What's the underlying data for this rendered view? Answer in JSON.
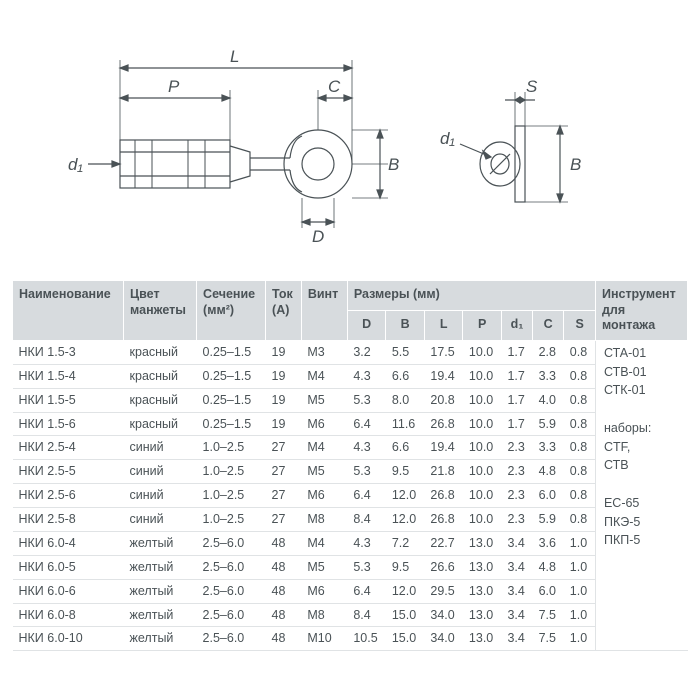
{
  "diagram": {
    "labels": {
      "L": "L",
      "P": "P",
      "C": "C",
      "B": "B",
      "D": "D",
      "S": "S",
      "d1": "d₁"
    },
    "stroke": "#4a5256",
    "stroke_width": 1.2
  },
  "table": {
    "headers": {
      "name": "Наименование",
      "color": "Цвет\nманжеты",
      "section": "Сечение\n(мм²)",
      "current": "Ток\n(A)",
      "screw": "Винт",
      "sizes": "Размеры (мм)",
      "D": "D",
      "Bc": "B",
      "Lc": "L",
      "Pc": "P",
      "d1c": "d₁",
      "Cc": "C",
      "Sc": "S",
      "tool": "Инструмент\nдля\nмонтажа"
    },
    "rows": [
      {
        "name": "НКИ 1.5-3",
        "color": "красный",
        "sec": "0.25–1.5",
        "cur": "19",
        "screw": "M3",
        "D": "3.2",
        "B": "5.5",
        "L": "17.5",
        "P": "10.0",
        "d1": "1.7",
        "C": "2.8",
        "S": "0.8"
      },
      {
        "name": "НКИ 1.5-4",
        "color": "красный",
        "sec": "0.25–1.5",
        "cur": "19",
        "screw": "M4",
        "D": "4.3",
        "B": "6.6",
        "L": "19.4",
        "P": "10.0",
        "d1": "1.7",
        "C": "3.3",
        "S": "0.8"
      },
      {
        "name": "НКИ 1.5-5",
        "color": "красный",
        "sec": "0.25–1.5",
        "cur": "19",
        "screw": "M5",
        "D": "5.3",
        "B": "8.0",
        "L": "20.8",
        "P": "10.0",
        "d1": "1.7",
        "C": "4.0",
        "S": "0.8"
      },
      {
        "name": "НКИ 1.5-6",
        "color": "красный",
        "sec": "0.25–1.5",
        "cur": "19",
        "screw": "M6",
        "D": "6.4",
        "B": "11.6",
        "L": "26.8",
        "P": "10.0",
        "d1": "1.7",
        "C": "5.9",
        "S": "0.8"
      },
      {
        "name": "НКИ 2.5-4",
        "color": "синий",
        "sec": "1.0–2.5",
        "cur": "27",
        "screw": "M4",
        "D": "4.3",
        "B": "6.6",
        "L": "19.4",
        "P": "10.0",
        "d1": "2.3",
        "C": "3.3",
        "S": "0.8"
      },
      {
        "name": "НКИ 2.5-5",
        "color": "синий",
        "sec": "1.0–2.5",
        "cur": "27",
        "screw": "M5",
        "D": "5.3",
        "B": "9.5",
        "L": "21.8",
        "P": "10.0",
        "d1": "2.3",
        "C": "4.8",
        "S": "0.8"
      },
      {
        "name": "НКИ 2.5-6",
        "color": "синий",
        "sec": "1.0–2.5",
        "cur": "27",
        "screw": "M6",
        "D": "6.4",
        "B": "12.0",
        "L": "26.8",
        "P": "10.0",
        "d1": "2.3",
        "C": "6.0",
        "S": "0.8"
      },
      {
        "name": "НКИ 2.5-8",
        "color": "синий",
        "sec": "1.0–2.5",
        "cur": "27",
        "screw": "M8",
        "D": "8.4",
        "B": "12.0",
        "L": "26.8",
        "P": "10.0",
        "d1": "2.3",
        "C": "5.9",
        "S": "0.8"
      },
      {
        "name": "НКИ 6.0-4",
        "color": "желтый",
        "sec": "2.5–6.0",
        "cur": "48",
        "screw": "M4",
        "D": "4.3",
        "B": "7.2",
        "L": "22.7",
        "P": "13.0",
        "d1": "3.4",
        "C": "3.6",
        "S": "1.0"
      },
      {
        "name": "НКИ 6.0-5",
        "color": "желтый",
        "sec": "2.5–6.0",
        "cur": "48",
        "screw": "M5",
        "D": "5.3",
        "B": "9.5",
        "L": "26.6",
        "P": "13.0",
        "d1": "3.4",
        "C": "4.8",
        "S": "1.0"
      },
      {
        "name": "НКИ 6.0-6",
        "color": "желтый",
        "sec": "2.5–6.0",
        "cur": "48",
        "screw": "M6",
        "D": "6.4",
        "B": "12.0",
        "L": "29.5",
        "P": "13.0",
        "d1": "3.4",
        "C": "6.0",
        "S": "1.0"
      },
      {
        "name": "НКИ 6.0-8",
        "color": "желтый",
        "sec": "2.5–6.0",
        "cur": "48",
        "screw": "M8",
        "D": "8.4",
        "B": "15.0",
        "L": "34.0",
        "P": "13.0",
        "d1": "3.4",
        "C": "7.5",
        "S": "1.0"
      },
      {
        "name": "НКИ 6.0-10",
        "color": "желтый",
        "sec": "2.5–6.0",
        "cur": "48",
        "screw": "M10",
        "D": "10.5",
        "B": "15.0",
        "L": "34.0",
        "P": "13.0",
        "d1": "3.4",
        "C": "7.5",
        "S": "1.0"
      }
    ],
    "tools": [
      "СТА-01",
      "СТВ-01",
      "СТК-01",
      "",
      "наборы:",
      "CTF,",
      "СТВ",
      "",
      "EC-65",
      "ПКЭ-5",
      "ПКП-5"
    ]
  }
}
